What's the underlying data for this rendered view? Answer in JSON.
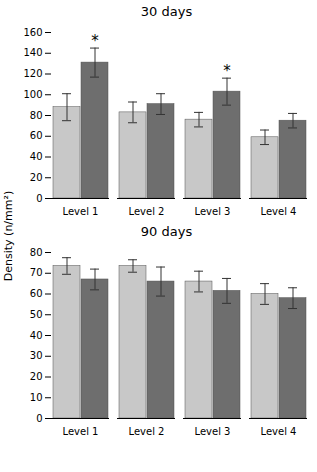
{
  "chart_data": [
    {
      "type": "bar",
      "title": "30 days",
      "categories": [
        "Level 1",
        "Level 2",
        "Level 3",
        "Level 4"
      ],
      "series": [
        {
          "color": "#c8c8c8",
          "values": [
            88,
            83,
            76,
            59
          ],
          "errors": [
            13,
            10,
            7,
            7
          ]
        },
        {
          "color": "#6e6e6e",
          "values": [
            131,
            91,
            103,
            75
          ],
          "errors": [
            14,
            10,
            13,
            7
          ],
          "annotations": [
            {
              "category": "Level 1",
              "text": "*"
            },
            {
              "category": "Level 3",
              "text": "*"
            }
          ]
        }
      ],
      "ylim": [
        0,
        160
      ],
      "yticks": [
        0,
        20,
        40,
        60,
        80,
        100,
        120,
        140,
        160
      ],
      "grid": false
    },
    {
      "type": "bar",
      "title": "90 days",
      "categories": [
        "Level 1",
        "Level 2",
        "Level 3",
        "Level 4"
      ],
      "series": [
        {
          "color": "#c8c8c8",
          "values": [
            73.5,
            73.5,
            66,
            60
          ],
          "errors": [
            4,
            3,
            5,
            5
          ]
        },
        {
          "color": "#6e6e6e",
          "values": [
            67,
            66,
            61.5,
            58
          ],
          "errors": [
            5,
            7,
            6,
            5
          ]
        }
      ],
      "ylim": [
        0,
        80
      ],
      "yticks": [
        0,
        10,
        20,
        30,
        40,
        50,
        60,
        70,
        80
      ],
      "grid": false
    }
  ],
  "ylabel": "Density (n/mm²)"
}
